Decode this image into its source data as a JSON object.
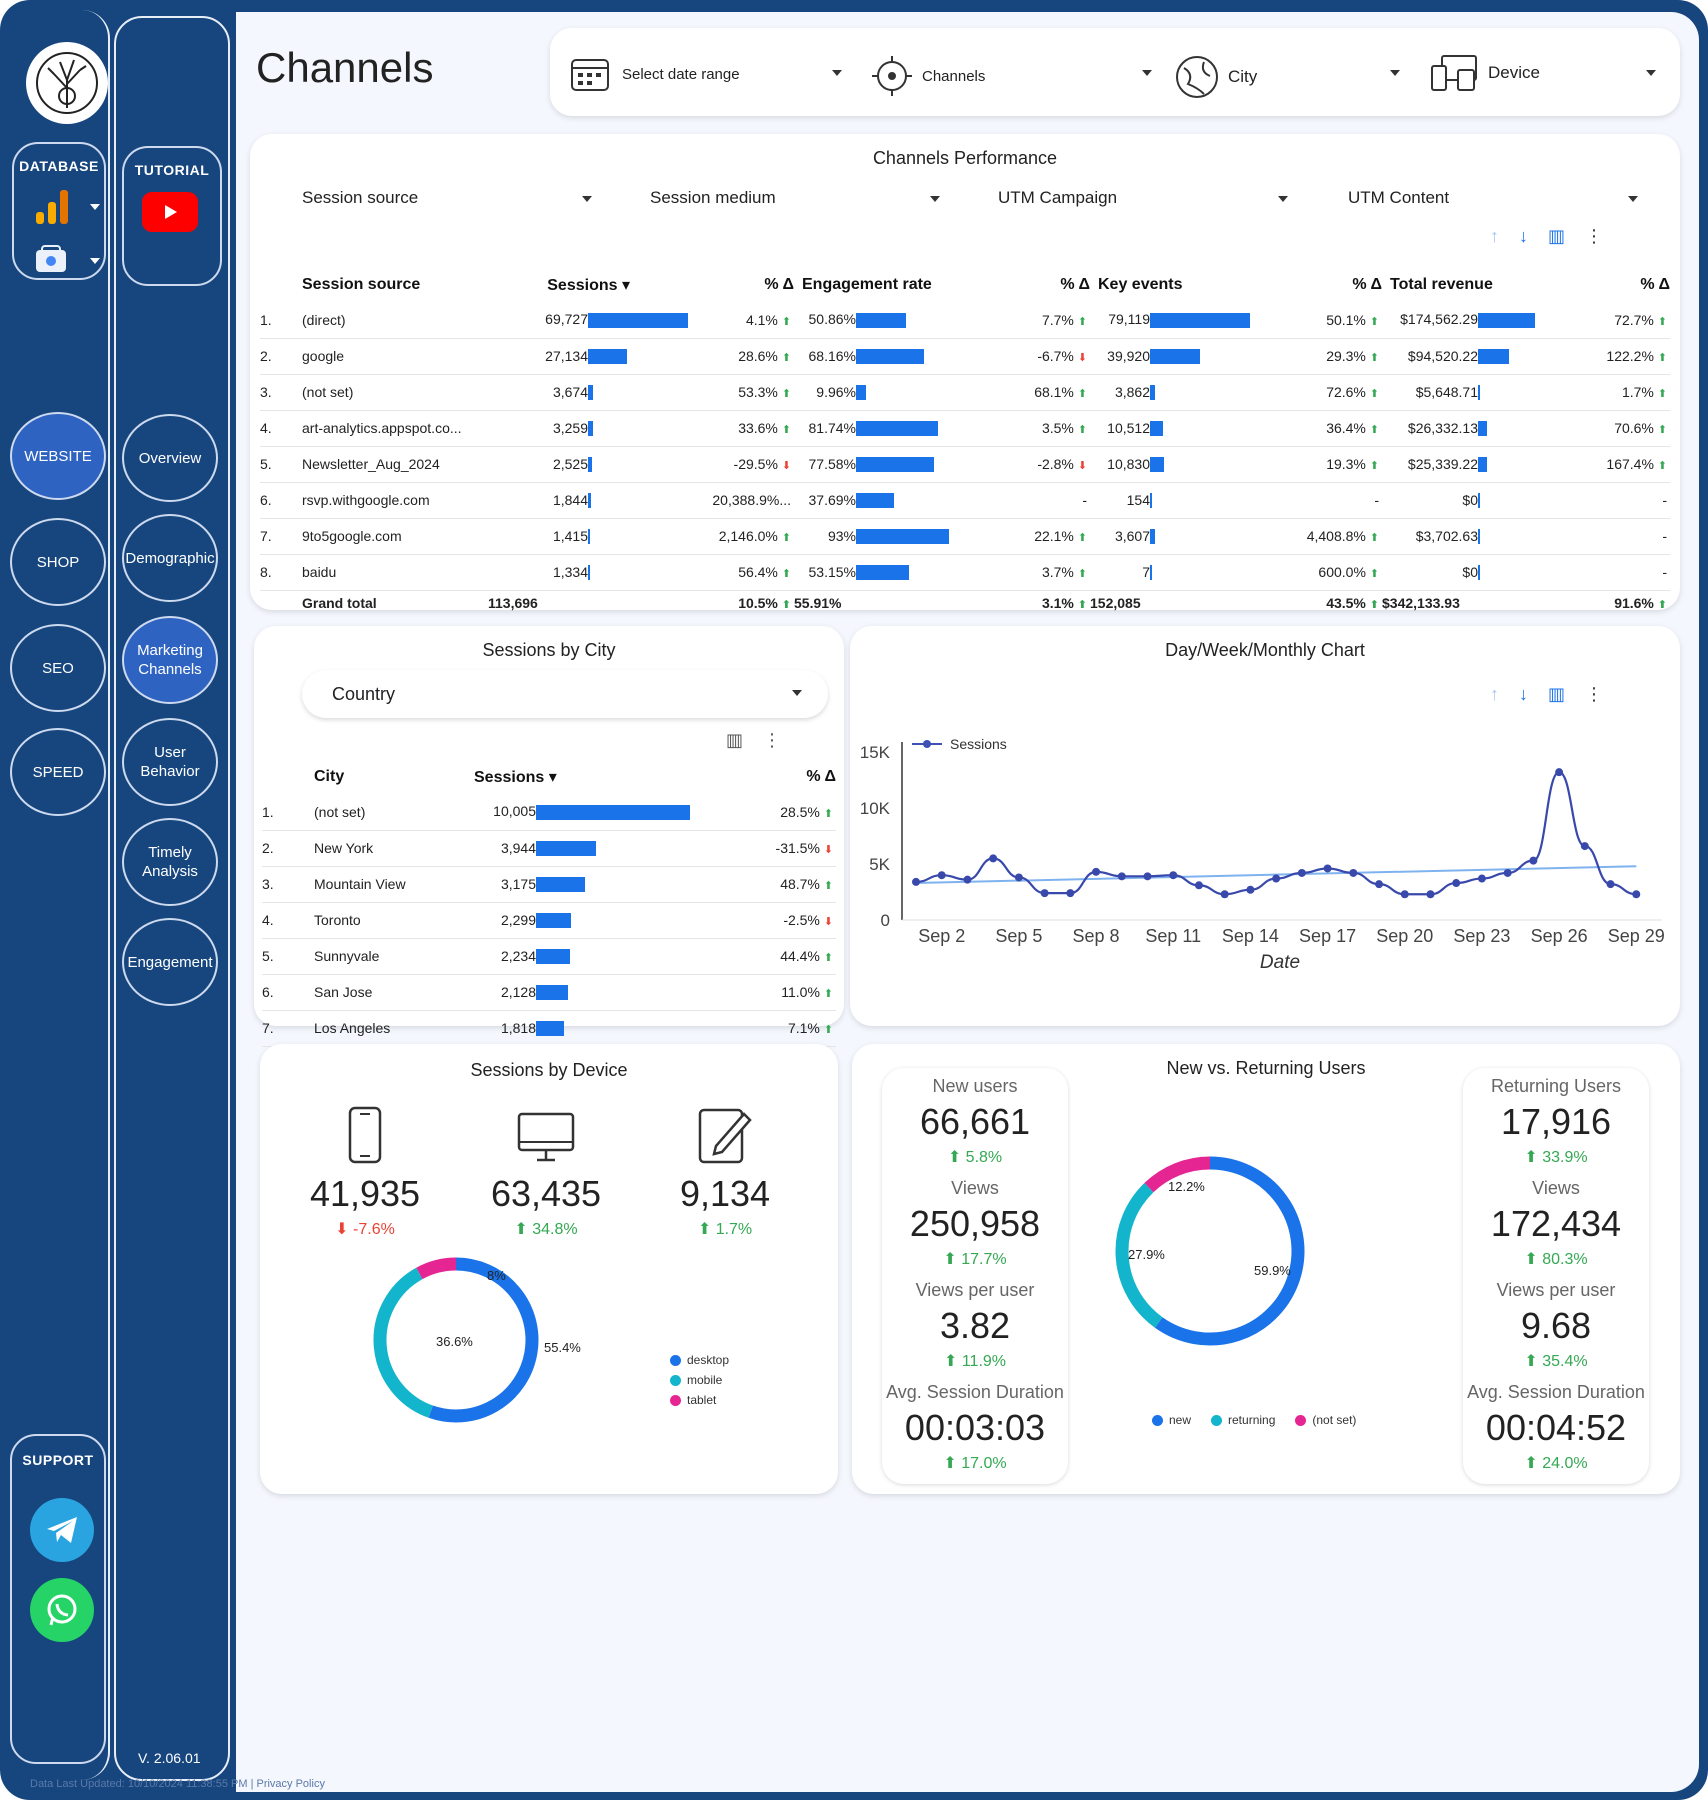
{
  "page": {
    "title": "Channels",
    "version": "V. 2.06.01",
    "footer": "Data Last Updated: 10/10/2024 11:38:55 PM  |  Privacy Policy"
  },
  "sidebar": {
    "database_label": "DATABASE",
    "tutorial_label": "TUTORIAL",
    "support_label": "SUPPORT",
    "main_nav": [
      "WEBSITE",
      "SHOP",
      "SEO",
      "SPEED"
    ],
    "sub_nav": [
      "Overview",
      "Demographic",
      "Marketing Channels",
      "User Behavior",
      "Timely Analysis",
      "Engagement"
    ]
  },
  "top_filters": [
    "Select date range",
    "Channels",
    "City",
    "Device"
  ],
  "channels": {
    "title": "Channels Performance",
    "filters": [
      "Session source",
      "Session medium",
      "UTM Campaign",
      "UTM Content"
    ],
    "headers": [
      "Session source",
      "Sessions",
      "% Δ",
      "Engagement rate",
      "% Δ",
      "Key events",
      "% Δ",
      "Total revenue",
      "% Δ"
    ],
    "rows": [
      {
        "n": "1.",
        "src": "(direct)",
        "s": "69,727",
        "sb": 100,
        "sd": "4.1%",
        "sdd": "up",
        "e": "50.86%",
        "eb": 50,
        "ed": "7.7%",
        "edd": "up",
        "k": "79,119",
        "kb": 100,
        "kd": "50.1%",
        "kdd": "up",
        "r": "$174,562.29",
        "rb": 57,
        "rd": "72.7%",
        "rdd": "up"
      },
      {
        "n": "2.",
        "src": "google",
        "s": "27,134",
        "sb": 39,
        "sd": "28.6%",
        "sdd": "up",
        "e": "68.16%",
        "eb": 68,
        "ed": "-6.7%",
        "edd": "dn",
        "k": "39,920",
        "kb": 50,
        "kd": "29.3%",
        "kdd": "up",
        "r": "$94,520.22",
        "rb": 31,
        "rd": "122.2%",
        "rdd": "up"
      },
      {
        "n": "3.",
        "src": "(not set)",
        "s": "3,674",
        "sb": 5,
        "sd": "53.3%",
        "sdd": "up",
        "e": "9.96%",
        "eb": 10,
        "ed": "68.1%",
        "edd": "up",
        "k": "3,862",
        "kb": 5,
        "kd": "72.6%",
        "kdd": "up",
        "r": "$5,648.71",
        "rb": 2,
        "rd": "1.7%",
        "rdd": "up"
      },
      {
        "n": "4.",
        "src": "art-analytics.appspot.co...",
        "s": "3,259",
        "sb": 5,
        "sd": "33.6%",
        "sdd": "up",
        "e": "81.74%",
        "eb": 82,
        "ed": "3.5%",
        "edd": "up",
        "k": "10,512",
        "kb": 13,
        "kd": "36.4%",
        "kdd": "up",
        "r": "$26,332.13",
        "rb": 9,
        "rd": "70.6%",
        "rdd": "up"
      },
      {
        "n": "5.",
        "src": "Newsletter_Aug_2024",
        "s": "2,525",
        "sb": 4,
        "sd": "-29.5%",
        "sdd": "dn",
        "e": "77.58%",
        "eb": 78,
        "ed": "-2.8%",
        "edd": "dn",
        "k": "10,830",
        "kb": 14,
        "kd": "19.3%",
        "kdd": "up",
        "r": "$25,339.22",
        "rb": 9,
        "rd": "167.4%",
        "rdd": "up"
      },
      {
        "n": "6.",
        "src": "rsvp.withgoogle.com",
        "s": "1,844",
        "sb": 3,
        "sd": "20,388.9%...",
        "sdd": "",
        "e": "37.69%",
        "eb": 38,
        "ed": "-",
        "edd": "",
        "k": "154",
        "kb": 1,
        "kd": "-",
        "kdd": "",
        "r": "$0",
        "rb": 1,
        "rd": "-",
        "rdd": ""
      },
      {
        "n": "7.",
        "src": "9to5google.com",
        "s": "1,415",
        "sb": 2,
        "sd": "2,146.0%",
        "sdd": "up",
        "e": "93%",
        "eb": 93,
        "ed": "22.1%",
        "edd": "up",
        "k": "3,607",
        "kb": 5,
        "kd": "4,408.8%",
        "kdd": "up",
        "r": "$3,702.63",
        "rb": 1,
        "rd": "-",
        "rdd": ""
      },
      {
        "n": "8.",
        "src": "baidu",
        "s": "1,334",
        "sb": 2,
        "sd": "56.4%",
        "sdd": "up",
        "e": "53.15%",
        "eb": 53,
        "ed": "3.7%",
        "edd": "up",
        "k": "7",
        "kb": 1,
        "kd": "600.0%",
        "kdd": "up",
        "r": "$0",
        "rb": 1,
        "rd": "-",
        "rdd": ""
      }
    ],
    "total": {
      "label": "Grand total",
      "s": "113,696",
      "sd": "10.5%",
      "e": "55.91%",
      "ed": "3.1%",
      "k": "152,085",
      "kd": "43.5%",
      "r": "$342,133.93",
      "rd": "91.6%"
    }
  },
  "city": {
    "title": "Sessions by City",
    "filter": "Country",
    "headers": [
      "City",
      "Sessions",
      "% Δ"
    ],
    "rows": [
      {
        "n": "1.",
        "c": "(not set)",
        "s": "10,005",
        "b": 100,
        "d": "28.5%",
        "dd": "up"
      },
      {
        "n": "2.",
        "c": "New York",
        "s": "3,944",
        "b": 39,
        "d": "-31.5%",
        "dd": "dn"
      },
      {
        "n": "3.",
        "c": "Mountain View",
        "s": "3,175",
        "b": 32,
        "d": "48.7%",
        "dd": "up"
      },
      {
        "n": "4.",
        "c": "Toronto",
        "s": "2,299",
        "b": 23,
        "d": "-2.5%",
        "dd": "dn"
      },
      {
        "n": "5.",
        "c": "Sunnyvale",
        "s": "2,234",
        "b": 22,
        "d": "44.4%",
        "dd": "up"
      },
      {
        "n": "6.",
        "c": "San Jose",
        "s": "2,128",
        "b": 21,
        "d": "11.0%",
        "dd": "up"
      },
      {
        "n": "7.",
        "c": "Los Angeles",
        "s": "1,818",
        "b": 18,
        "d": "7.1%",
        "dd": "up"
      }
    ]
  },
  "chart_data": [
    {
      "type": "line",
      "title": "Day/Week/Monthly Chart",
      "xlabel": "Date",
      "ylabel": "",
      "ylim": [
        0,
        15000
      ],
      "yticks": [
        "0",
        "5K",
        "10K",
        "15K"
      ],
      "xticks": [
        "Sep 2",
        "Sep 5",
        "Sep 8",
        "Sep 11",
        "Sep 14",
        "Sep 17",
        "Sep 20",
        "Sep 23",
        "Sep 26",
        "Sep 29"
      ],
      "legend": "top-left",
      "x": [
        "Sep 1",
        "Sep 2",
        "Sep 3",
        "Sep 4",
        "Sep 5",
        "Sep 6",
        "Sep 7",
        "Sep 8",
        "Sep 9",
        "Sep 10",
        "Sep 11",
        "Sep 12",
        "Sep 13",
        "Sep 14",
        "Sep 15",
        "Sep 16",
        "Sep 17",
        "Sep 18",
        "Sep 19",
        "Sep 20",
        "Sep 21",
        "Sep 22",
        "Sep 23",
        "Sep 24",
        "Sep 25",
        "Sep 26",
        "Sep 27",
        "Sep 28",
        "Sep 29",
        "Sep 30"
      ],
      "series": [
        {
          "name": "Sessions",
          "values": [
            3400,
            4000,
            3600,
            5500,
            3800,
            2400,
            2400,
            4300,
            3900,
            3900,
            4000,
            3100,
            2300,
            2700,
            3700,
            4200,
            4600,
            4200,
            3200,
            2300,
            2300,
            3300,
            3700,
            4200,
            5300,
            13200,
            6600,
            3200,
            2300,
            null
          ]
        }
      ],
      "trendline": [
        3300,
        4800
      ]
    },
    {
      "type": "pie",
      "title": "Sessions by Device",
      "categories": [
        "desktop",
        "mobile",
        "tablet"
      ],
      "values": [
        55.4,
        36.6,
        8.0
      ],
      "colors": [
        "#1a73e8",
        "#12b5cb",
        "#e52592"
      ]
    },
    {
      "type": "pie",
      "title": "New vs. Returning Users",
      "categories": [
        "new",
        "returning",
        "(not set)"
      ],
      "values": [
        59.9,
        27.9,
        12.2
      ],
      "colors": [
        "#1a73e8",
        "#12b5cb",
        "#e52592"
      ]
    }
  ],
  "device": {
    "items": [
      {
        "value": "41,935",
        "change": "-7.6%",
        "dir": "dn",
        "icon": "phone-icon"
      },
      {
        "value": "63,435",
        "change": "34.8%",
        "dir": "up",
        "icon": "desktop-icon"
      },
      {
        "value": "9,134",
        "change": "1.7%",
        "dir": "up",
        "icon": "tablet-icon"
      }
    ],
    "labels": [
      "55.4%",
      "36.6%",
      "8%"
    ]
  },
  "users": {
    "labels": [
      "59.9%",
      "27.9%",
      "12.2%"
    ],
    "left": [
      {
        "l": "New users",
        "v": "66,661",
        "c": "5.8%"
      },
      {
        "l": "Views",
        "v": "250,958",
        "c": "17.7%"
      },
      {
        "l": "Views per user",
        "v": "3.82",
        "c": "11.9%"
      },
      {
        "l": "Avg. Session Duration",
        "v": "00:03:03",
        "c": "17.0%"
      }
    ],
    "right": [
      {
        "l": "Returning Users",
        "v": "17,916",
        "c": "33.9%"
      },
      {
        "l": "Views",
        "v": "172,434",
        "c": "80.3%"
      },
      {
        "l": "Views per user",
        "v": "9.68",
        "c": "35.4%"
      },
      {
        "l": "Avg. Session Duration",
        "v": "00:04:52",
        "c": "24.0%"
      }
    ]
  },
  "colors": {
    "accent": "#1a73e8",
    "nav": "#17467f",
    "up": "#34a853",
    "down": "#ea4335",
    "pink": "#e52592",
    "teal": "#12b5cb"
  }
}
